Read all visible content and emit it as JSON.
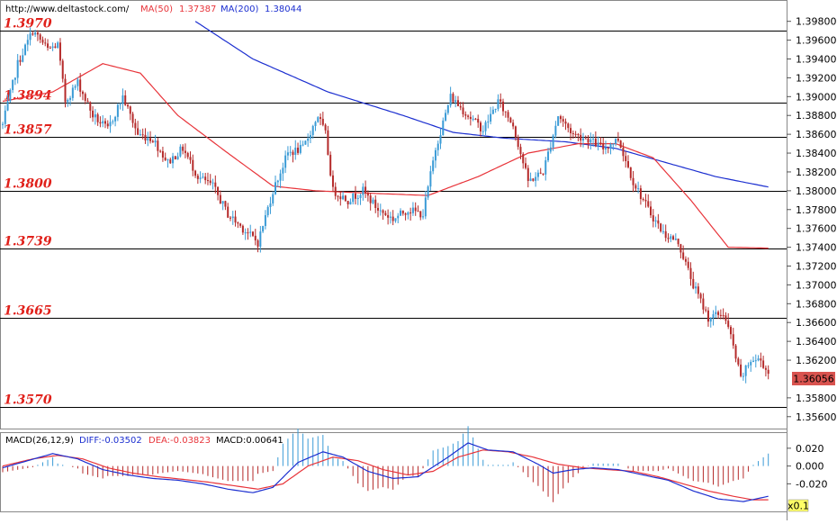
{
  "header": {
    "site": "http://www.deltastock.com/",
    "ma50_label": "MA(50)",
    "ma50_value": "1.37387",
    "ma200_label": "MA(200)",
    "ma200_value": "1.38044"
  },
  "macd_header": {
    "label": "MACD(26,12,9)",
    "diff": "DIFF:-0.03502",
    "dea": "DEA:-0.03823",
    "macd": "MACD:0.00641"
  },
  "colors": {
    "up": "#3a9bd6",
    "down": "#b52a2a",
    "ma50": "#e8343a",
    "ma200": "#1c2fd0",
    "level_text": "#e0201a",
    "price_tag": "#d9534f"
  },
  "price_tag": "1.36056",
  "zoom_badge": "x0.1",
  "chart_data": {
    "type": "candlestick",
    "y_range": [
      1.3555,
      1.3995
    ],
    "y_ticks": [
      "1.39800",
      "1.39600",
      "1.39400",
      "1.39200",
      "1.39000",
      "1.38800",
      "1.38600",
      "1.38400",
      "1.38200",
      "1.38000",
      "1.37800",
      "1.37600",
      "1.37400",
      "1.37200",
      "1.37000",
      "1.36800",
      "1.36600",
      "1.36400",
      "1.36200",
      "1.35800",
      "1.35600"
    ],
    "levels": [
      {
        "label": "1.3970",
        "value": 1.397
      },
      {
        "label": "1.3894",
        "value": 1.3894
      },
      {
        "label": "1.3857",
        "value": 1.3857
      },
      {
        "label": "1.3800",
        "value": 1.38
      },
      {
        "label": "1.3739",
        "value": 1.3739
      },
      {
        "label": "1.3665",
        "value": 1.3665
      },
      {
        "label": "1.3570",
        "value": 1.357
      }
    ],
    "anchors": [
      [
        0,
        1.387
      ],
      [
        6,
        1.3935
      ],
      [
        12,
        1.397
      ],
      [
        18,
        1.395
      ],
      [
        22,
        1.3955
      ],
      [
        25,
        1.3895
      ],
      [
        30,
        1.3915
      ],
      [
        36,
        1.388
      ],
      [
        42,
        1.3865
      ],
      [
        48,
        1.39
      ],
      [
        54,
        1.386
      ],
      [
        60,
        1.3855
      ],
      [
        66,
        1.383
      ],
      [
        72,
        1.3845
      ],
      [
        78,
        1.3815
      ],
      [
        84,
        1.3805
      ],
      [
        90,
        1.3775
      ],
      [
        96,
        1.376
      ],
      [
        102,
        1.3745
      ],
      [
        108,
        1.38
      ],
      [
        114,
        1.384
      ],
      [
        120,
        1.3845
      ],
      [
        126,
        1.388
      ],
      [
        129,
        1.386
      ],
      [
        132,
        1.38
      ],
      [
        138,
        1.379
      ],
      [
        144,
        1.38
      ],
      [
        150,
        1.378
      ],
      [
        156,
        1.377
      ],
      [
        162,
        1.378
      ],
      [
        168,
        1.3775
      ],
      [
        173,
        1.3845
      ],
      [
        179,
        1.39
      ],
      [
        186,
        1.388
      ],
      [
        192,
        1.3865
      ],
      [
        198,
        1.3895
      ],
      [
        204,
        1.387
      ],
      [
        210,
        1.381
      ],
      [
        216,
        1.382
      ],
      [
        222,
        1.388
      ],
      [
        228,
        1.386
      ],
      [
        234,
        1.3855
      ],
      [
        240,
        1.3845
      ],
      [
        246,
        1.3855
      ],
      [
        252,
        1.381
      ],
      [
        258,
        1.378
      ],
      [
        264,
        1.3755
      ],
      [
        270,
        1.3745
      ],
      [
        276,
        1.37
      ],
      [
        282,
        1.3665
      ],
      [
        288,
        1.367
      ],
      [
        291,
        1.3645
      ],
      [
        295,
        1.36
      ],
      [
        299,
        1.362
      ],
      [
        303,
        1.362
      ],
      [
        306,
        1.3606
      ]
    ],
    "ma50": [
      [
        0,
        1.3895
      ],
      [
        20,
        1.3905
      ],
      [
        40,
        1.3935
      ],
      [
        55,
        1.3925
      ],
      [
        70,
        1.388
      ],
      [
        90,
        1.384
      ],
      [
        108,
        1.3805
      ],
      [
        125,
        1.38
      ],
      [
        150,
        1.3797
      ],
      [
        170,
        1.3795
      ],
      [
        190,
        1.3815
      ],
      [
        210,
        1.384
      ],
      [
        230,
        1.385
      ],
      [
        245,
        1.385
      ],
      [
        260,
        1.3835
      ],
      [
        275,
        1.379
      ],
      [
        290,
        1.374
      ],
      [
        306,
        1.3739
      ]
    ],
    "ma200": [
      [
        77,
        1.398
      ],
      [
        100,
        1.394
      ],
      [
        130,
        1.3905
      ],
      [
        160,
        1.388
      ],
      [
        180,
        1.3862
      ],
      [
        200,
        1.3856
      ],
      [
        225,
        1.3852
      ],
      [
        245,
        1.3845
      ],
      [
        265,
        1.383
      ],
      [
        285,
        1.3815
      ],
      [
        306,
        1.3804
      ]
    ],
    "macd": {
      "y_range": [
        -0.05,
        0.032
      ],
      "y_ticks": [
        "0.020",
        "0.000",
        "-0.020"
      ],
      "diff_anchors": [
        [
          0,
          -0.002
        ],
        [
          10,
          0.006
        ],
        [
          20,
          0.014
        ],
        [
          30,
          0.008
        ],
        [
          40,
          -0.004
        ],
        [
          50,
          -0.01
        ],
        [
          60,
          -0.014
        ],
        [
          70,
          -0.016
        ],
        [
          80,
          -0.02
        ],
        [
          90,
          -0.026
        ],
        [
          100,
          -0.03
        ],
        [
          108,
          -0.024
        ],
        [
          118,
          0.004
        ],
        [
          128,
          0.016
        ],
        [
          136,
          0.01
        ],
        [
          146,
          -0.006
        ],
        [
          156,
          -0.014
        ],
        [
          166,
          -0.012
        ],
        [
          178,
          0.01
        ],
        [
          186,
          0.026
        ],
        [
          194,
          0.018
        ],
        [
          204,
          0.016
        ],
        [
          214,
          0.002
        ],
        [
          220,
          -0.008
        ],
        [
          228,
          -0.004
        ],
        [
          236,
          -0.002
        ],
        [
          246,
          -0.004
        ],
        [
          256,
          -0.01
        ],
        [
          266,
          -0.016
        ],
        [
          276,
          -0.028
        ],
        [
          286,
          -0.037
        ],
        [
          296,
          -0.04
        ],
        [
          306,
          -0.034
        ]
      ],
      "dea_anchors": [
        [
          0,
          0.0
        ],
        [
          12,
          0.008
        ],
        [
          22,
          0.012
        ],
        [
          32,
          0.008
        ],
        [
          42,
          -0.002
        ],
        [
          52,
          -0.008
        ],
        [
          62,
          -0.012
        ],
        [
          72,
          -0.015
        ],
        [
          82,
          -0.018
        ],
        [
          92,
          -0.022
        ],
        [
          102,
          -0.026
        ],
        [
          112,
          -0.02
        ],
        [
          122,
          0.0
        ],
        [
          132,
          0.01
        ],
        [
          142,
          0.006
        ],
        [
          152,
          -0.004
        ],
        [
          162,
          -0.01
        ],
        [
          172,
          -0.006
        ],
        [
          182,
          0.01
        ],
        [
          192,
          0.018
        ],
        [
          202,
          0.016
        ],
        [
          212,
          0.01
        ],
        [
          222,
          0.002
        ],
        [
          232,
          -0.002
        ],
        [
          242,
          -0.004
        ],
        [
          252,
          -0.006
        ],
        [
          262,
          -0.012
        ],
        [
          272,
          -0.02
        ],
        [
          282,
          -0.028
        ],
        [
          292,
          -0.034
        ],
        [
          300,
          -0.038
        ],
        [
          306,
          -0.038
        ]
      ]
    }
  }
}
